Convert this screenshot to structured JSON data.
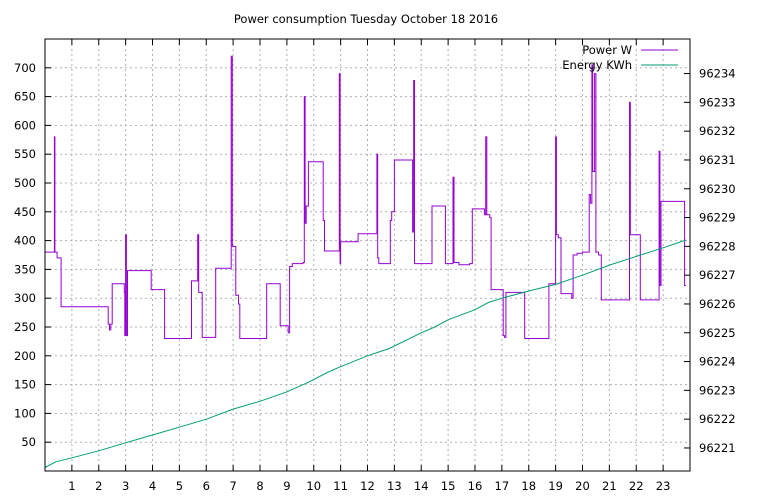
{
  "chart_data": {
    "type": "line",
    "title": "Power consumption Tuesday October 18 2016",
    "xlabel": "",
    "ylabel": "",
    "y2label": "",
    "xlim": [
      0,
      24
    ],
    "ylim": [
      0,
      750
    ],
    "y2lim": [
      96220.2,
      96235.2
    ],
    "x_ticks": [
      1,
      2,
      3,
      4,
      5,
      6,
      7,
      8,
      9,
      10,
      11,
      12,
      13,
      14,
      15,
      16,
      17,
      18,
      19,
      20,
      21,
      22,
      23
    ],
    "y_ticks": [
      50,
      100,
      150,
      200,
      250,
      300,
      350,
      400,
      450,
      500,
      550,
      600,
      650,
      700
    ],
    "y2_ticks": [
      96221,
      96222,
      96223,
      96224,
      96225,
      96226,
      96227,
      96228,
      96229,
      96230,
      96231,
      96232,
      96233,
      96234
    ],
    "grid": true,
    "legend_position": "top-right",
    "series": [
      {
        "name": "Power W",
        "axis": "left",
        "color": "#9400d3",
        "step": true,
        "points": [
          [
            0.0,
            380
          ],
          [
            0.33,
            380
          ],
          [
            0.35,
            580
          ],
          [
            0.37,
            380
          ],
          [
            0.45,
            370
          ],
          [
            0.55,
            370
          ],
          [
            0.6,
            285
          ],
          [
            2.3,
            285
          ],
          [
            2.35,
            255
          ],
          [
            2.4,
            245
          ],
          [
            2.45,
            255
          ],
          [
            2.5,
            325
          ],
          [
            2.9,
            325
          ],
          [
            2.95,
            310
          ],
          [
            2.97,
            235
          ],
          [
            3.0,
            410
          ],
          [
            3.03,
            235
          ],
          [
            3.07,
            348
          ],
          [
            3.5,
            348
          ],
          [
            3.9,
            348
          ],
          [
            3.95,
            315
          ],
          [
            4.4,
            315
          ],
          [
            4.45,
            230
          ],
          [
            5.0,
            230
          ],
          [
            5.4,
            230
          ],
          [
            5.45,
            330
          ],
          [
            5.65,
            330
          ],
          [
            5.68,
            410
          ],
          [
            5.72,
            310
          ],
          [
            5.8,
            310
          ],
          [
            5.85,
            232
          ],
          [
            6.2,
            232
          ],
          [
            6.3,
            232
          ],
          [
            6.35,
            352
          ],
          [
            6.9,
            352
          ],
          [
            6.93,
            720
          ],
          [
            6.97,
            390
          ],
          [
            7.05,
            390
          ],
          [
            7.1,
            305
          ],
          [
            7.2,
            290
          ],
          [
            7.25,
            230
          ],
          [
            7.9,
            230
          ],
          [
            8.2,
            230
          ],
          [
            8.25,
            325
          ],
          [
            8.7,
            325
          ],
          [
            8.75,
            252
          ],
          [
            9.0,
            252
          ],
          [
            9.05,
            240
          ],
          [
            9.1,
            355
          ],
          [
            9.2,
            360
          ],
          [
            9.6,
            362
          ],
          [
            9.65,
            650
          ],
          [
            9.68,
            430
          ],
          [
            9.72,
            460
          ],
          [
            9.8,
            537
          ],
          [
            10.3,
            537
          ],
          [
            10.35,
            435
          ],
          [
            10.4,
            382
          ],
          [
            10.9,
            382
          ],
          [
            10.95,
            690
          ],
          [
            10.98,
            360
          ],
          [
            11.0,
            398
          ],
          [
            11.6,
            398
          ],
          [
            11.65,
            412
          ],
          [
            12.0,
            412
          ],
          [
            12.3,
            412
          ],
          [
            12.35,
            550
          ],
          [
            12.38,
            370
          ],
          [
            12.42,
            360
          ],
          [
            12.8,
            360
          ],
          [
            12.85,
            435
          ],
          [
            12.9,
            450
          ],
          [
            13.0,
            540
          ],
          [
            13.5,
            540
          ],
          [
            13.65,
            540
          ],
          [
            13.68,
            415
          ],
          [
            13.72,
            678
          ],
          [
            13.75,
            360
          ],
          [
            14.3,
            360
          ],
          [
            14.4,
            460
          ],
          [
            14.85,
            460
          ],
          [
            14.9,
            360
          ],
          [
            15.15,
            360
          ],
          [
            15.18,
            510
          ],
          [
            15.22,
            362
          ],
          [
            15.4,
            358
          ],
          [
            15.8,
            360
          ],
          [
            15.9,
            455
          ],
          [
            16.3,
            455
          ],
          [
            16.35,
            445
          ],
          [
            16.4,
            580
          ],
          [
            16.44,
            445
          ],
          [
            16.55,
            440
          ],
          [
            16.6,
            315
          ],
          [
            17.0,
            315
          ],
          [
            17.05,
            235
          ],
          [
            17.1,
            232
          ],
          [
            17.15,
            310
          ],
          [
            17.5,
            310
          ],
          [
            17.8,
            310
          ],
          [
            17.85,
            230
          ],
          [
            18.5,
            230
          ],
          [
            18.7,
            230
          ],
          [
            18.75,
            325
          ],
          [
            18.95,
            325
          ],
          [
            19.0,
            580
          ],
          [
            19.03,
            410
          ],
          [
            19.1,
            405
          ],
          [
            19.2,
            308
          ],
          [
            19.5,
            308
          ],
          [
            19.6,
            300
          ],
          [
            19.65,
            375
          ],
          [
            19.8,
            378
          ],
          [
            20.0,
            380
          ],
          [
            20.2,
            380
          ],
          [
            20.25,
            480
          ],
          [
            20.3,
            465
          ],
          [
            20.35,
            705
          ],
          [
            20.38,
            520
          ],
          [
            20.42,
            520
          ],
          [
            20.45,
            690
          ],
          [
            20.5,
            380
          ],
          [
            20.6,
            375
          ],
          [
            20.7,
            297
          ],
          [
            21.7,
            297
          ],
          [
            21.75,
            640
          ],
          [
            21.78,
            410
          ],
          [
            22.1,
            410
          ],
          [
            22.15,
            297
          ],
          [
            22.7,
            297
          ],
          [
            22.8,
            297
          ],
          [
            22.85,
            555
          ],
          [
            22.88,
            322
          ],
          [
            22.9,
            322
          ],
          [
            22.92,
            468
          ],
          [
            23.5,
            468
          ],
          [
            23.75,
            468
          ],
          [
            23.8,
            322
          ],
          [
            23.85,
            322
          ]
        ]
      },
      {
        "name": "Energy KWh",
        "axis": "right",
        "color": "#009e73",
        "step": false,
        "points": [
          [
            0.0,
            96220.32
          ],
          [
            0.4,
            96220.52
          ],
          [
            1.0,
            96220.66
          ],
          [
            2.0,
            96220.9
          ],
          [
            3.0,
            96221.18
          ],
          [
            4.0,
            96221.45
          ],
          [
            5.0,
            96221.72
          ],
          [
            6.0,
            96222.0
          ],
          [
            7.0,
            96222.35
          ],
          [
            8.0,
            96222.62
          ],
          [
            9.0,
            96222.95
          ],
          [
            9.8,
            96223.28
          ],
          [
            10.5,
            96223.62
          ],
          [
            11.0,
            96223.82
          ],
          [
            12.0,
            96224.2
          ],
          [
            12.8,
            96224.45
          ],
          [
            14.0,
            96225.0
          ],
          [
            14.5,
            96225.2
          ],
          [
            15.0,
            96225.45
          ],
          [
            16.0,
            96225.8
          ],
          [
            16.5,
            96226.05
          ],
          [
            17.0,
            96226.2
          ],
          [
            18.0,
            96226.45
          ],
          [
            19.0,
            96226.68
          ],
          [
            20.0,
            96227.0
          ],
          [
            21.0,
            96227.35
          ],
          [
            22.0,
            96227.65
          ],
          [
            23.0,
            96227.95
          ],
          [
            23.85,
            96228.22
          ]
        ]
      }
    ]
  }
}
